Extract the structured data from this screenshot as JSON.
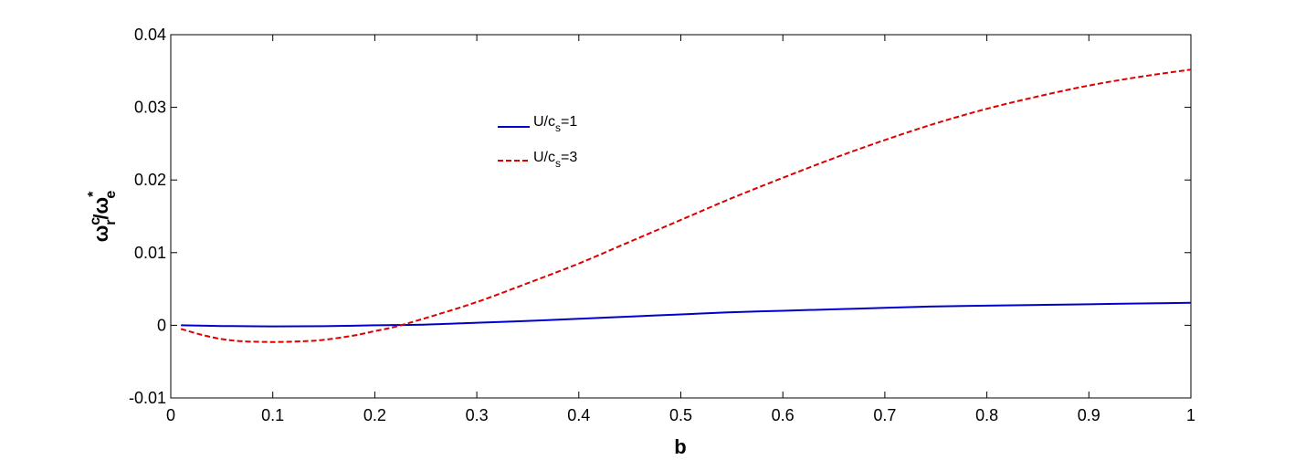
{
  "chart_data": {
    "type": "line",
    "xlabel": "b",
    "ylabel": {
      "base": "ω",
      "sup": "c",
      "sub": "r",
      "slash": "/",
      "base2": "ω",
      "sup2": "*",
      "sub2": "e"
    },
    "xlim": [
      0,
      1
    ],
    "ylim": [
      -0.01,
      0.04
    ],
    "xticks": [
      "0",
      "0.1",
      "0.2",
      "0.3",
      "0.4",
      "0.5",
      "0.6",
      "0.7",
      "0.8",
      "0.9",
      "1"
    ],
    "yticks": [
      "-0.01",
      "0",
      "0.01",
      "0.02",
      "0.03",
      "0.04"
    ],
    "grid": false,
    "legend_position": "upper-center",
    "series": [
      {
        "name": "U/c_s=1",
        "legend": {
          "prefix": "U/c",
          "sub": "s",
          "suffix": "=1"
        },
        "color": "#0000cc",
        "style": "solid",
        "x": [
          0.01,
          0.05,
          0.1,
          0.15,
          0.2,
          0.25,
          0.3,
          0.35,
          0.4,
          0.45,
          0.5,
          0.55,
          0.6,
          0.65,
          0.7,
          0.75,
          0.8,
          0.85,
          0.9,
          0.95,
          1.0
        ],
        "y": [
          0.0,
          -0.0001,
          -0.00015,
          -0.00012,
          0.0,
          0.0001,
          0.00035,
          0.0006,
          0.0009,
          0.0012,
          0.0015,
          0.0018,
          0.002,
          0.0022,
          0.0024,
          0.0026,
          0.0027,
          0.0028,
          0.0029,
          0.003,
          0.0031
        ]
      },
      {
        "name": "U/c_s=3",
        "legend": {
          "prefix": "U/c",
          "sub": "s",
          "suffix": "=3"
        },
        "color": "#dd0000",
        "style": "dashed",
        "x": [
          0.01,
          0.03,
          0.05,
          0.07,
          0.1,
          0.13,
          0.15,
          0.18,
          0.2,
          0.22,
          0.25,
          0.3,
          0.35,
          0.4,
          0.45,
          0.5,
          0.55,
          0.6,
          0.65,
          0.7,
          0.75,
          0.8,
          0.85,
          0.9,
          0.95,
          1.0
        ],
        "y": [
          -0.0005,
          -0.0013,
          -0.0019,
          -0.0022,
          -0.0023,
          -0.0022,
          -0.002,
          -0.0014,
          -0.0008,
          -0.0002,
          0.001,
          0.0032,
          0.0058,
          0.0085,
          0.0115,
          0.0145,
          0.0175,
          0.0203,
          0.023,
          0.0255,
          0.0278,
          0.0298,
          0.0315,
          0.033,
          0.0342,
          0.0352
        ]
      }
    ]
  }
}
